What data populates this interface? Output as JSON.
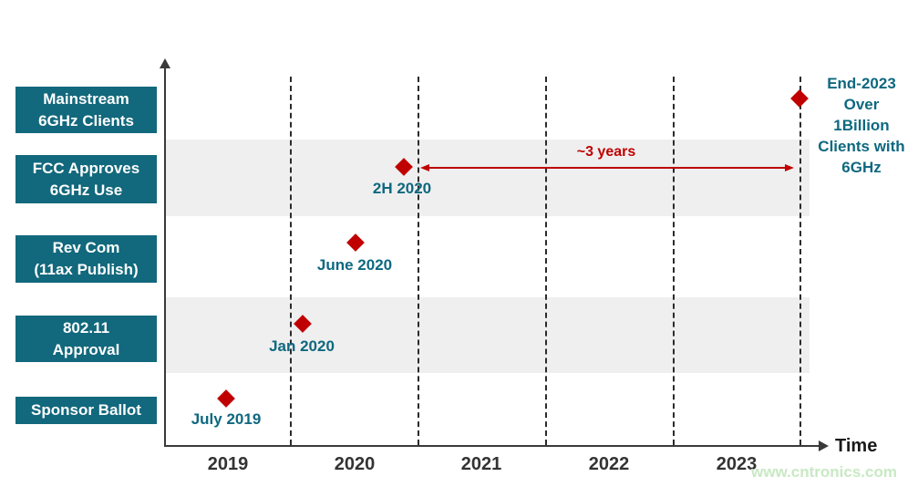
{
  "rows": [
    {
      "label": "Mainstream\n6GHz Clients"
    },
    {
      "label": "FCC Approves\n6GHz Use"
    },
    {
      "label": "Rev Com\n(11ax Publish)"
    },
    {
      "label": "802.11\nApproval"
    },
    {
      "label": "Sponsor Ballot"
    }
  ],
  "milestones": {
    "sponsor_ballot": {
      "label": "July 2019"
    },
    "approval_80211": {
      "label": "Jan 2020"
    },
    "rev_com": {
      "label": "June 2020"
    },
    "fcc": {
      "label": "2H 2020"
    },
    "mainstream": {
      "label": "End-2023\nOver\n1Billion\nClients with\n6GHz"
    }
  },
  "annotation": {
    "label": "~3 years"
  },
  "axis": {
    "x_label": "Time",
    "ticks": [
      "2019",
      "2020",
      "2021",
      "2022",
      "2023"
    ]
  },
  "watermark": "www.cntronics.com",
  "colors": {
    "category_box_teal": "#12687c",
    "date_label_teal": "#0e6880",
    "marker_red": "#c00000",
    "band_gray": "#efefef",
    "axis_dark": "#3a3a3a",
    "watermark_green": "#c8e9c3"
  },
  "chart_data": {
    "type": "scatter",
    "title": "",
    "xlabel": "Time",
    "x_ticks": [
      "2019",
      "2020",
      "2021",
      "2022",
      "2023"
    ],
    "x_range": [
      2018.5,
      2024.1
    ],
    "grid": "vertical-dashed-at-year-boundaries",
    "marker": "diamond",
    "marker_color": "#c00000",
    "categories_bottom_to_top": [
      "Sponsor Ballot",
      "802.11 Approval",
      "Rev Com (11ax Publish)",
      "FCC Approves 6GHz Use",
      "Mainstream 6GHz Clients"
    ],
    "points": [
      {
        "category": "Sponsor Ballot",
        "date_label": "July 2019",
        "x": 2019.5
      },
      {
        "category": "802.11 Approval",
        "date_label": "Jan 2020",
        "x": 2020.05
      },
      {
        "category": "Rev Com (11ax Publish)",
        "date_label": "June 2020",
        "x": 2020.5
      },
      {
        "category": "FCC Approves 6GHz Use",
        "date_label": "2H 2020",
        "x": 2020.9
      },
      {
        "category": "Mainstream 6GHz Clients",
        "date_label": "End-2023",
        "x": 2023.95,
        "note": "Over 1Billion Clients with 6GHz"
      }
    ],
    "annotations": [
      {
        "label": "~3 years",
        "type": "double-arrow",
        "from_x": 2020.95,
        "to_x": 2023.85,
        "color": "#c00000"
      }
    ],
    "shaded_rows": [
      "FCC Approves 6GHz Use",
      "802.11 Approval"
    ],
    "legend": "none"
  }
}
